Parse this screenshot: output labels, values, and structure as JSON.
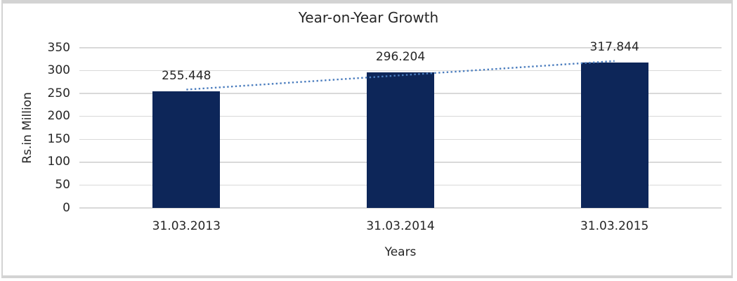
{
  "chart_data": {
    "type": "bar",
    "title": "Year-on-Year Growth",
    "categories": [
      "31.03.2013",
      "31.03.2014",
      "31.03.2015"
    ],
    "values": [
      255.448,
      296.204,
      317.844
    ],
    "data_labels": [
      "255.448",
      "296.204",
      "317.844"
    ],
    "xlabel": "Years",
    "ylabel": "Rs.in Million",
    "ylim": [
      0,
      350
    ],
    "ytick_step": 50,
    "yticks": [
      "350",
      "300",
      "250",
      "200",
      "150",
      "100",
      "50",
      "0"
    ],
    "grid": true,
    "legend": "none",
    "trendline": {
      "type": "linear",
      "style": "dotted"
    }
  },
  "colors": {
    "bar": "#0d2659",
    "trendline": "#4b7dbe",
    "gridline": "#d9d9d9",
    "text": "#262626",
    "frame_border": "#d3d3d3",
    "background": "#ffffff"
  }
}
